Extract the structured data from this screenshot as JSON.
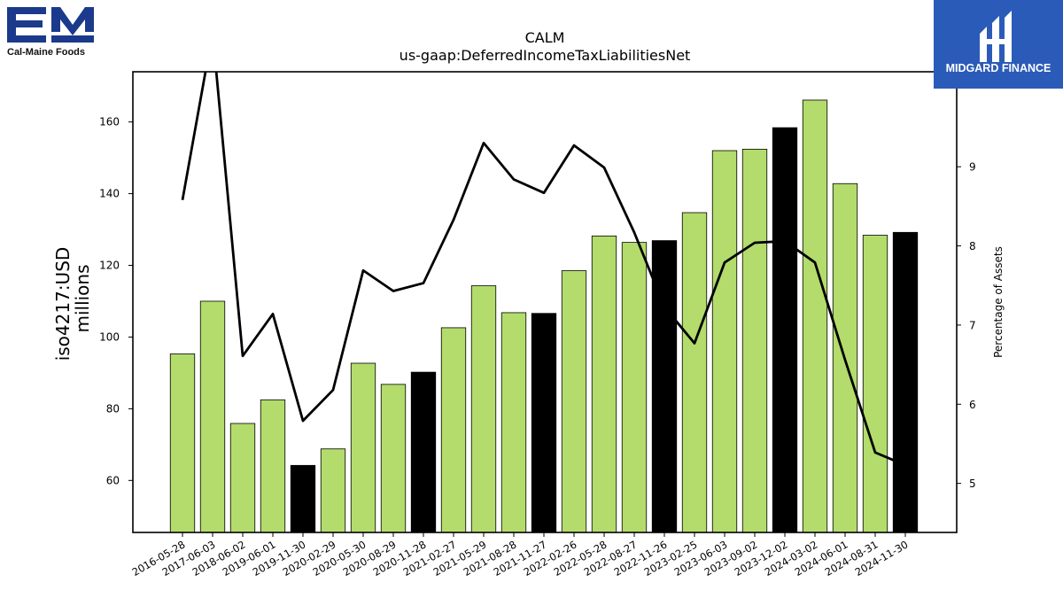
{
  "logos": {
    "left_company": "Cal-Maine Foods",
    "right_company": "MIDGARD FINANCE"
  },
  "colors": {
    "bar_default": "#b3dc6c",
    "bar_highlight": "#000000",
    "line": "#000000",
    "brand_left": "#1b3a8c",
    "brand_right": "#2b5bb8"
  },
  "chart_data": {
    "type": "bar",
    "title": "CALM",
    "subtitle": "us-gaap:DeferredIncomeTaxLiabilitiesNet",
    "ylabel": "iso4217:USD",
    "ylabel_sub": "millions",
    "y2label": "Percentage of Assets",
    "ylim": [
      45.5,
      174
    ],
    "y_ticks": [
      60,
      80,
      100,
      120,
      140,
      160
    ],
    "y2lim": [
      4.38,
      10.2
    ],
    "y2_ticks": [
      5,
      6,
      7,
      8,
      9
    ],
    "categories": [
      "2016-05-28",
      "2017-06-03",
      "2018-06-02",
      "2019-06-01",
      "2019-11-30",
      "2020-02-29",
      "2020-05-30",
      "2020-08-29",
      "2020-11-28",
      "2021-02-27",
      "2021-05-29",
      "2021-08-28",
      "2021-11-27",
      "2022-02-26",
      "2022-05-28",
      "2022-08-27",
      "2022-11-26",
      "2023-02-25",
      "2023-06-03",
      "2023-09-02",
      "2023-12-02",
      "2024-03-02",
      "2024-06-01",
      "2024-08-31",
      "2024-11-30"
    ],
    "series": [
      {
        "values": [
          95.3,
          110.0,
          75.9,
          82.5,
          64.2,
          68.8,
          92.7,
          86.8,
          90.2,
          102.6,
          114.3,
          106.8,
          106.6,
          118.5,
          128.2,
          126.4,
          126.9,
          134.7,
          152.0,
          152.4,
          158.4,
          166.1,
          142.8,
          128.4,
          129.2
        ],
        "highlight": [
          false,
          false,
          false,
          false,
          true,
          false,
          false,
          false,
          true,
          false,
          false,
          false,
          true,
          false,
          false,
          false,
          true,
          false,
          false,
          false,
          true,
          false,
          false,
          false,
          true
        ]
      },
      {
        "axis": "right",
        "values": [
          8.58,
          10.7,
          6.61,
          7.14,
          5.79,
          6.18,
          7.69,
          7.43,
          7.53,
          8.33,
          9.3,
          8.84,
          8.67,
          9.27,
          8.99,
          8.17,
          7.23,
          6.77,
          7.79,
          8.04,
          8.06,
          7.79,
          6.56,
          5.39,
          5.23
        ]
      }
    ]
  }
}
